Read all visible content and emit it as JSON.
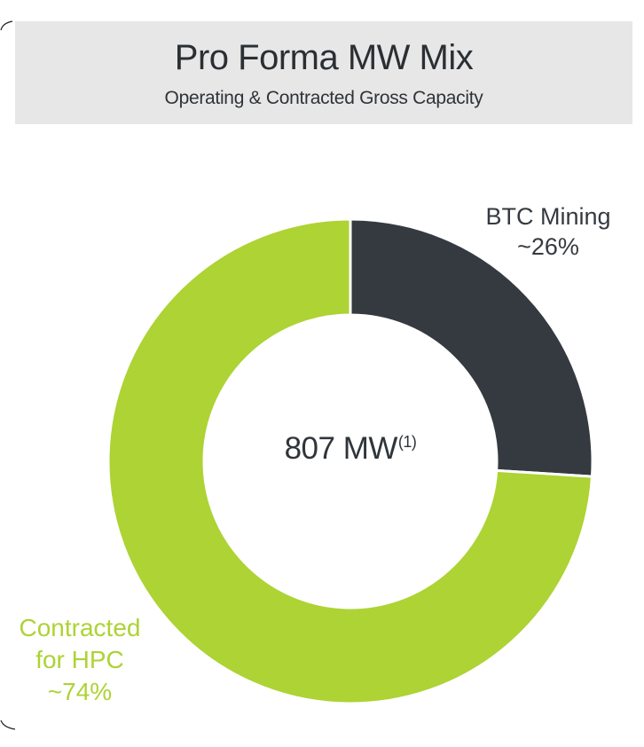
{
  "header": {
    "title": "Pro Forma MW Mix",
    "subtitle": "Operating & Contracted Gross Capacity"
  },
  "center": {
    "value": "807 MW",
    "footnote": "(1)"
  },
  "labels": {
    "btc_name": "BTC Mining",
    "btc_pct": "~26%",
    "hpc_name_line1": "Contracted",
    "hpc_name_line2": "for HPC",
    "hpc_pct": "~74%"
  },
  "colors": {
    "btc": "#353a41",
    "hpc": "#add334",
    "header_bg": "#e7e7e7",
    "text_dark": "#2b2f33"
  },
  "chart_data": {
    "type": "pie",
    "subtype": "donut",
    "title": "Pro Forma MW Mix",
    "subtitle": "Operating & Contracted Gross Capacity",
    "center_text": "807 MW(1)",
    "total_mw": 807,
    "categories": [
      "BTC Mining",
      "Contracted for HPC"
    ],
    "values": [
      26,
      74
    ],
    "value_labels": [
      "~26%",
      "~74%"
    ],
    "colors": [
      "#353a41",
      "#add334"
    ],
    "start_angle_deg": 0,
    "direction": "clockwise",
    "legend": "none (direct labels)"
  }
}
